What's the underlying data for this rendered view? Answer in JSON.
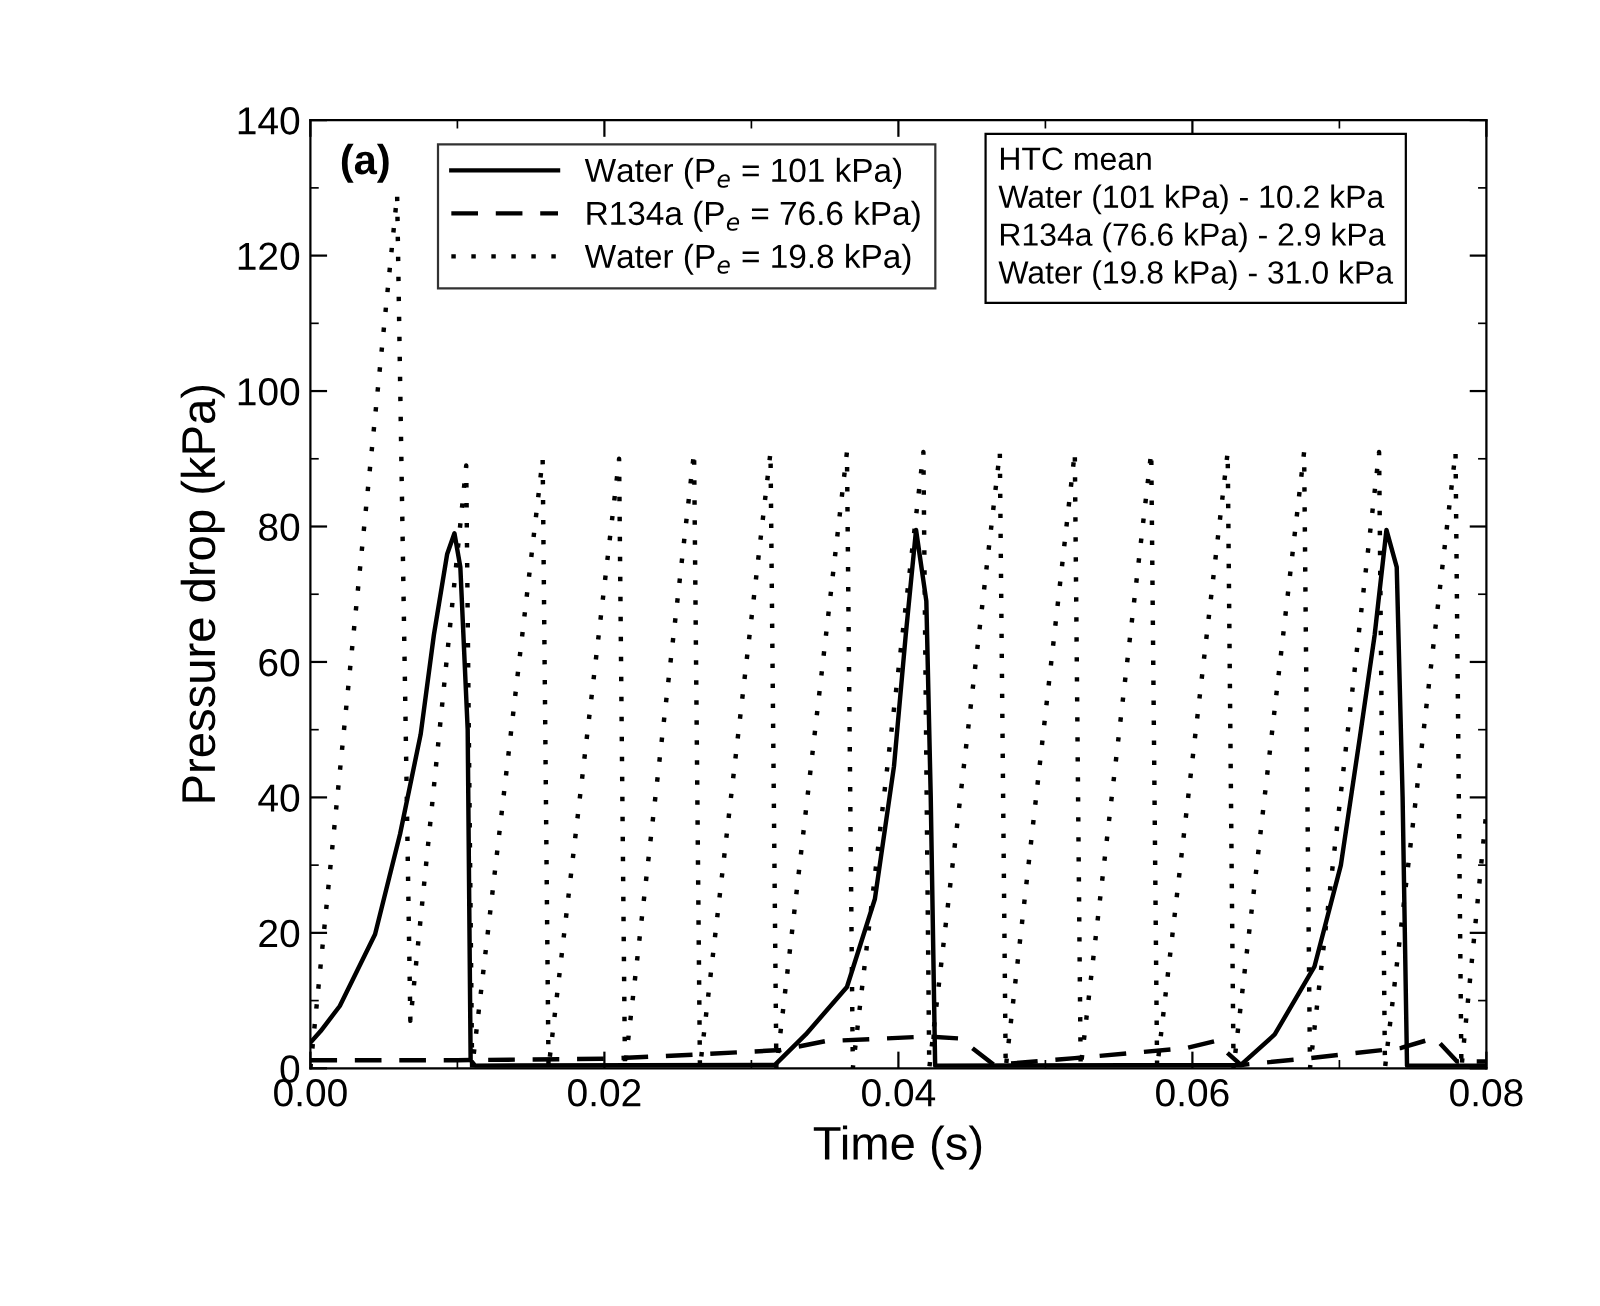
{
  "chart_data": {
    "type": "line",
    "xlabel": "Time (s)",
    "ylabel": "Pressure drop (kPa)",
    "xlim": [
      0,
      0.08
    ],
    "ylim": [
      0,
      140
    ],
    "xticks": [
      {
        "value": 0,
        "label": "0.00"
      },
      {
        "value": 0.02,
        "label": "0.02"
      },
      {
        "value": 0.04,
        "label": "0.04"
      },
      {
        "value": 0.06,
        "label": "0.06"
      },
      {
        "value": 0.08,
        "label": "0.08"
      }
    ],
    "yticks": [
      0,
      20,
      40,
      60,
      80,
      100,
      120,
      140
    ],
    "grid": false,
    "legend": "top",
    "marker": "none",
    "annotations": [
      "(a)",
      "HTC mean",
      "Water (101 kPa) - 10.2 kPa",
      "R134a (76.6 kPa) - 2.9 kPa",
      "Water (19.8 kPa) - 31.0 kPa"
    ],
    "series": [
      {
        "name": "Water (P$_{e}$ = 101 kPa)",
        "color": "#000000",
        "line_style": "solid",
        "x": [
          0,
          0.0007,
          0.002,
          0.0044,
          0.0061,
          0.0075,
          0.0084,
          0.0093,
          0.0098,
          0.0102,
          0.0107,
          0.0109,
          0.0112,
          0.0316,
          0.0337,
          0.0365,
          0.0384,
          0.0397,
          0.0405,
          0.0412,
          0.0419,
          0.0422,
          0.0425,
          0.0633,
          0.0656,
          0.0683,
          0.0701,
          0.0714,
          0.0724,
          0.0732,
          0.0739,
          0.0743,
          0.0746,
          0.08
        ],
        "values": [
          3.8,
          5.5,
          9.2,
          19.8,
          34.6,
          49.3,
          64,
          75.9,
          79,
          74,
          50,
          1.2,
          0.4,
          0.5,
          5,
          12,
          25,
          44.6,
          64,
          79.5,
          69,
          40,
          0.4,
          0.5,
          5,
          15,
          30,
          49,
          64,
          79.5,
          74,
          40,
          0.4,
          0.4
        ]
      },
      {
        "name": "R134a (P$_{e}$ = 76.6 kPa)",
        "color": "#000000",
        "line_style": "dashed",
        "x": [
          0,
          0.01,
          0.02,
          0.026,
          0.032,
          0.035,
          0.042,
          0.0442,
          0.0465,
          0.052,
          0.0596,
          0.0615,
          0.0633,
          0.068,
          0.0742,
          0.0765,
          0.078,
          0.08
        ],
        "values": [
          1.2,
          1.2,
          1.4,
          2.0,
          2.7,
          4.0,
          4.7,
          4.4,
          0.5,
          1.5,
          3.0,
          4.0,
          0.5,
          1.5,
          3.0,
          4.5,
          1.0,
          1.0
        ]
      },
      {
        "name": "Water (P$_{e}$ = 19.8 kPa)",
        "color": "#000000",
        "line_style": "dotted",
        "x": [
          0,
          0.0059,
          0.0068,
          0.0106,
          0.011,
          0.0158,
          0.0162,
          0.021,
          0.0214,
          0.0261,
          0.0265,
          0.0313,
          0.0317,
          0.0365,
          0.0369,
          0.0417,
          0.0421,
          0.0469,
          0.0473,
          0.052,
          0.0524,
          0.0572,
          0.0576,
          0.0624,
          0.0628,
          0.0676,
          0.068,
          0.0727,
          0.0731,
          0.0779,
          0.0783,
          0.08
        ],
        "values": [
          0,
          129,
          7,
          89,
          0,
          90,
          0,
          90,
          0,
          91,
          0,
          91,
          0,
          91,
          0,
          91,
          0,
          91,
          0,
          91,
          0,
          91,
          0,
          91,
          0,
          91,
          0,
          91,
          0,
          91,
          0,
          38
        ]
      }
    ]
  }
}
